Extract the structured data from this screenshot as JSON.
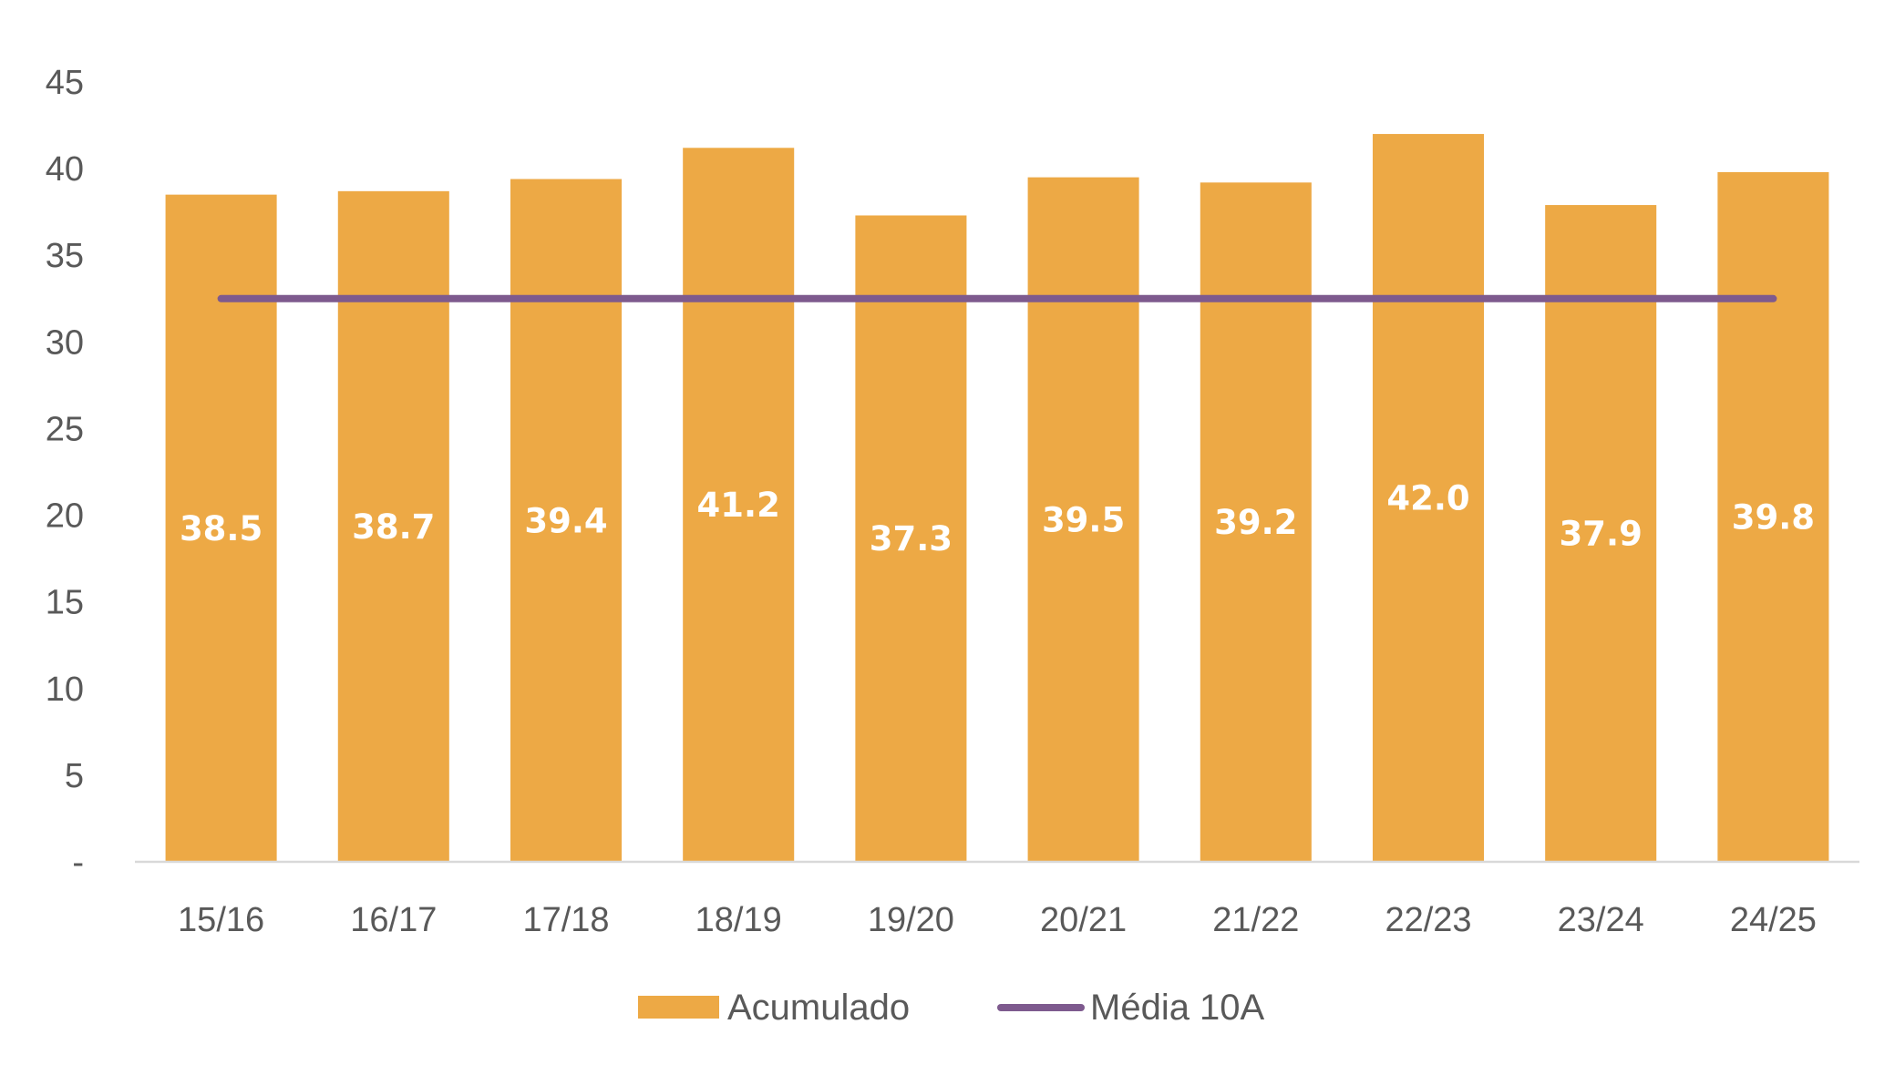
{
  "chart_data": {
    "type": "bar",
    "title": "",
    "xlabel": "",
    "ylabel": "",
    "categories": [
      "15/16",
      "16/17",
      "17/18",
      "18/19",
      "19/20",
      "20/21",
      "21/22",
      "22/23",
      "23/24",
      "24/25"
    ],
    "series": [
      {
        "name": "Acumulado",
        "type": "bar",
        "color": "#EDA945",
        "values": [
          38.5,
          38.7,
          39.4,
          41.2,
          37.3,
          39.5,
          39.2,
          42.0,
          37.9,
          39.8
        ],
        "labels": [
          "38.5",
          "38.7",
          "39.4",
          "41.2",
          "37.3",
          "39.5",
          "39.2",
          "42.0",
          "37.9",
          "39.8"
        ]
      },
      {
        "name": "Média 10A",
        "type": "line",
        "color": "#7E5A8E",
        "values": [
          32.5,
          32.5,
          32.5,
          32.5,
          32.5,
          32.5,
          32.5,
          32.5,
          32.5,
          32.5
        ]
      }
    ],
    "ylim": [
      0,
      45
    ],
    "yticks": [
      0,
      5,
      10,
      15,
      20,
      25,
      30,
      35,
      40,
      45
    ],
    "ytick_labels": [
      "-",
      "5",
      "10",
      "15",
      "20",
      "25",
      "30",
      "35",
      "40",
      "45"
    ],
    "grid": false,
    "legend": "bottom-center",
    "axis_color": "#D9D9D9"
  }
}
